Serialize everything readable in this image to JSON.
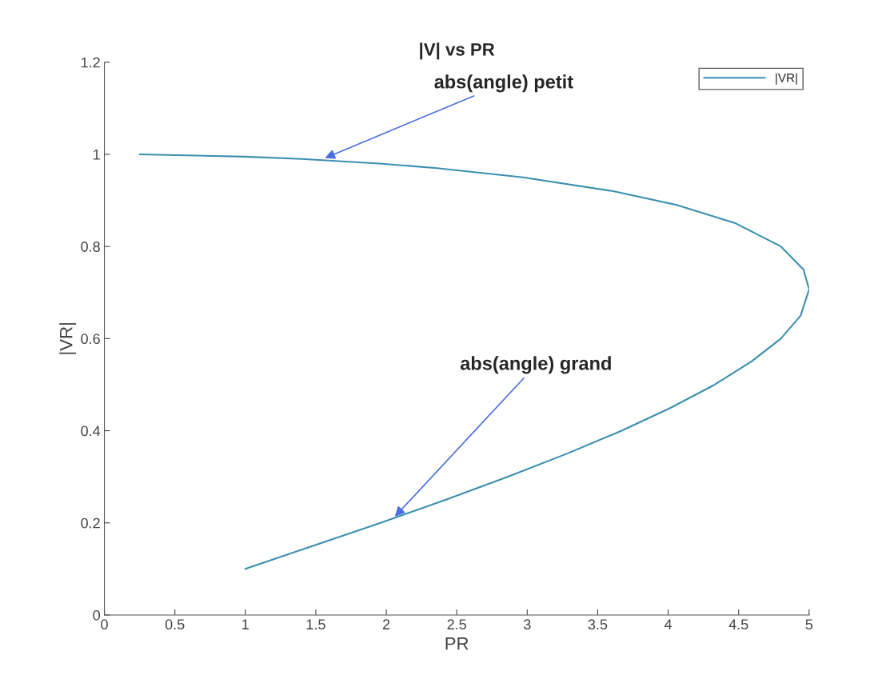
{
  "chart_data": {
    "type": "line",
    "title": "|V| vs PR",
    "xlabel": "PR",
    "ylabel": "|VR|",
    "x": [
      0.25,
      0.99,
      1.4,
      1.95,
      2.36,
      2.97,
      3.61,
      4.06,
      4.48,
      4.8,
      4.96,
      5.0,
      4.94,
      4.8,
      4.59,
      4.33,
      4.02,
      3.67,
      3.28,
      2.86,
      2.42,
      1.96,
      1.48,
      1.0
    ],
    "series": [
      {
        "name": "|VR|",
        "color": "#3a8fb0",
        "values": [
          1.0,
          0.995,
          0.99,
          0.98,
          0.97,
          0.95,
          0.92,
          0.89,
          0.85,
          0.8,
          0.75,
          0.707,
          0.65,
          0.6,
          0.55,
          0.5,
          0.45,
          0.4,
          0.35,
          0.3,
          0.25,
          0.2,
          0.15,
          0.1
        ]
      }
    ],
    "xlim": [
      0,
      5
    ],
    "xticks": [
      0,
      0.5,
      1,
      1.5,
      2,
      2.5,
      3,
      3.5,
      4,
      4.5,
      5
    ],
    "ylim": [
      0,
      1.2
    ],
    "yticks": [
      0,
      0.2,
      0.4,
      0.6,
      0.8,
      1,
      1.2
    ],
    "grid": false,
    "legend": "top right",
    "marker": "none",
    "line_style": "solid",
    "annotations": [
      {
        "text": "abs(angle) petit",
        "x": 1.55,
        "y": 0.99
      },
      {
        "text": "abs(angle) grand",
        "x": 2.05,
        "y": 0.21
      }
    ]
  }
}
